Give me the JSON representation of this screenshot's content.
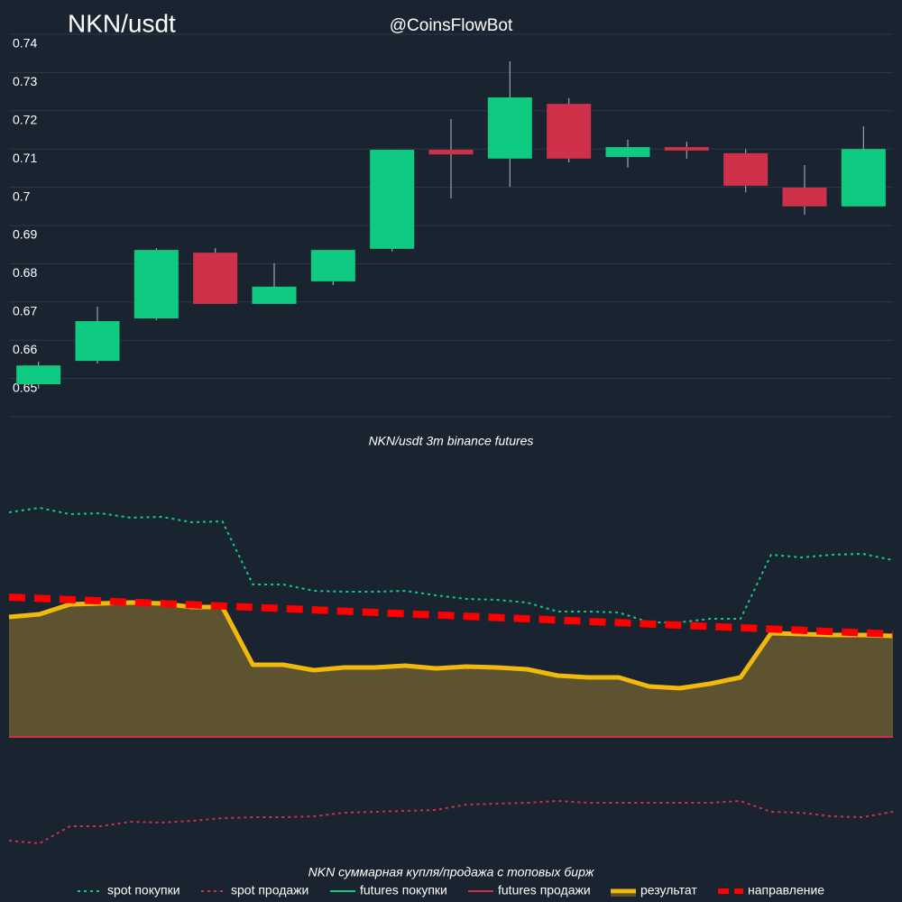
{
  "chart_data": [
    {
      "type": "candlestick",
      "title": "NKN/usdt",
      "annotation": "@CoinsFlowBot",
      "xlabel": "NKN/usdt 3m binance futures",
      "open": [
        0.6485,
        0.6546,
        0.6657,
        0.6829,
        0.6695,
        0.6754,
        0.6839,
        0.7098,
        0.7075,
        0.7218,
        0.7079,
        0.7105,
        0.7089,
        0.6999,
        0.695
      ],
      "high": [
        0.6544,
        0.6688,
        0.6841,
        0.6841,
        0.6801,
        0.6836,
        0.7098,
        0.7178,
        0.7329,
        0.7233,
        0.7124,
        0.7119,
        0.71,
        0.7058,
        0.7159
      ],
      "low": [
        0.6473,
        0.6539,
        0.6652,
        0.6695,
        0.6695,
        0.6744,
        0.6832,
        0.6971,
        0.7001,
        0.7065,
        0.7051,
        0.7075,
        0.6987,
        0.6928,
        0.695
      ],
      "close": [
        0.6534,
        0.665,
        0.6836,
        0.6695,
        0.674,
        0.6836,
        0.7098,
        0.7086,
        0.7235,
        0.7075,
        0.7105,
        0.7096,
        0.7004,
        0.695,
        0.71
      ],
      "up_color": "#0ecb81",
      "down_color": "#cf304a",
      "ylim": [
        0.64,
        0.74
      ],
      "yticks": [
        0.65,
        0.66,
        0.67,
        0.68,
        0.69,
        0.7,
        0.71,
        0.72,
        0.73,
        0.74
      ],
      "grid": true
    },
    {
      "type": "line",
      "xlabel": "NKN суммарная купля/продажа с топовых бирж",
      "ylim": [
        -150,
        300
      ],
      "legend": "bottom",
      "series": [
        {
          "name": "spot покупки",
          "color": "#0ecb81",
          "dash": "dot",
          "width": 2,
          "values": [
            249,
            254,
            247,
            248,
            243,
            244,
            238,
            239,
            169,
            169,
            162,
            161,
            161,
            162,
            157,
            153,
            152,
            149,
            139,
            139,
            138,
            127,
            127,
            131,
            131,
            202,
            199,
            202,
            203,
            196
          ]
        },
        {
          "name": "spot продажи",
          "color": "#cf304a",
          "dash": "dot",
          "width": 2,
          "values": [
            -115,
            -118,
            -99,
            -99,
            -94,
            -95,
            -93,
            -90,
            -89,
            -89,
            -88,
            -84,
            -83,
            -82,
            -81,
            -75,
            -74,
            -73,
            -71,
            -73,
            -73,
            -73,
            -73,
            -73,
            -71,
            -83,
            -84,
            -88,
            -89,
            -83
          ]
        },
        {
          "name": "futures покупки",
          "color": "#0ecb81",
          "dash": "solid",
          "width": 2,
          "values": [
            0,
            0,
            0,
            0,
            0,
            0,
            0,
            0,
            0,
            0,
            0,
            0,
            0,
            0,
            0,
            0,
            0,
            0,
            0,
            0,
            0,
            0,
            0,
            0,
            0,
            0,
            0,
            0,
            0,
            0
          ]
        },
        {
          "name": "futures продажи",
          "color": "#cf304a",
          "dash": "solid",
          "width": 2,
          "values": [
            0,
            0,
            0,
            0,
            0,
            0,
            0,
            0,
            0,
            0,
            0,
            0,
            0,
            0,
            0,
            0,
            0,
            0,
            0,
            0,
            0,
            0,
            0,
            0,
            0,
            0,
            0,
            0,
            0,
            0
          ]
        },
        {
          "name": "результат",
          "color": "#f0b90b",
          "fill": "#5e5330",
          "dash": "solid",
          "width": 5,
          "values": [
            133,
            136,
            147,
            148,
            149,
            148,
            144,
            144,
            80,
            80,
            74,
            77,
            77,
            79,
            76,
            78,
            77,
            75,
            68,
            66,
            66,
            56,
            54,
            59,
            66,
            115,
            114,
            113,
            113,
            112
          ]
        },
        {
          "name": "направление",
          "color": "#ff0000",
          "dash": "dash",
          "width": 8,
          "values": [
            155,
            153.6,
            152.2,
            150.8,
            149.3,
            147.9,
            146.5,
            145.1,
            143.7,
            142.3,
            140.9,
            139.4,
            138,
            136.6,
            135.2,
            133.8,
            132.4,
            131,
            129.6,
            128.1,
            126.7,
            125.3,
            123.9,
            122.5,
            121.1,
            119.7,
            118.2,
            116.8,
            115.4,
            114
          ]
        }
      ]
    }
  ]
}
